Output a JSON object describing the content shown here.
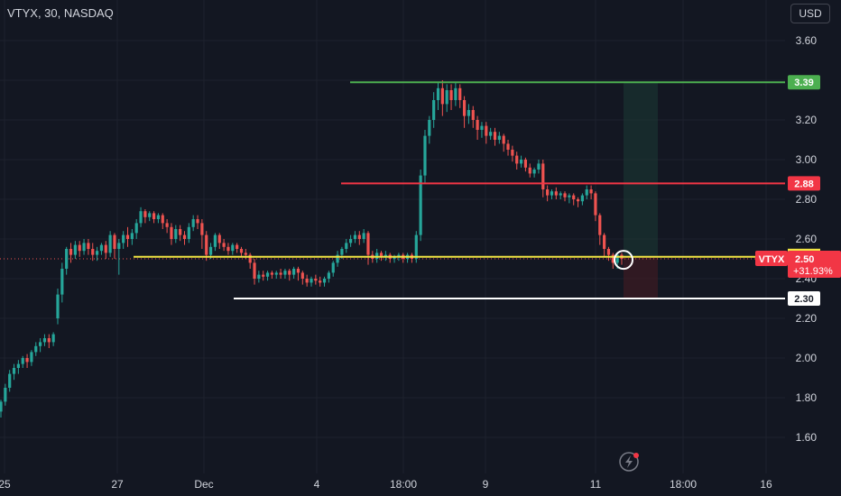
{
  "header": {
    "title": "VTYX, 30, NASDAQ",
    "currency_button": "USD",
    "symbol_tag": "VTYX"
  },
  "colors": {
    "background": "#131722",
    "up": "#26a69a",
    "down": "#ef5350",
    "green_line": "#4caf50",
    "red_line": "#f23645",
    "yellow_line": "#f0e442",
    "white_line": "#ffffff"
  },
  "icons": {
    "flash": "flash-icon"
  },
  "chart_data": {
    "type": "candlestick",
    "title": "VTYX, 30, NASDAQ",
    "currency": "USD",
    "y_ticks": [
      "3.60",
      "3.40",
      "3.20",
      "3.00",
      "2.80",
      "2.60",
      "2.40",
      "2.20",
      "2.00",
      "1.80",
      "1.60"
    ],
    "x_ticks": [
      "25",
      "27",
      "Dec",
      "4",
      "18:00",
      "9",
      "11",
      "18:00",
      "16"
    ],
    "ylim": [
      1.5,
      3.72
    ],
    "horizontal_lines": [
      {
        "label": "3.39",
        "value": 3.39,
        "color": "#4caf50"
      },
      {
        "label": "2.88",
        "value": 2.88,
        "color": "#f23645"
      },
      {
        "label": "2.30",
        "value": 2.3,
        "color": "#ffffff"
      },
      {
        "label": "",
        "value": 2.51,
        "color": "#f0e442"
      }
    ],
    "last_price": {
      "value": "2.50",
      "change": "+31.93%"
    },
    "position": {
      "entry": 2.51,
      "target": 3.39,
      "stop": 2.3
    },
    "candles": [
      [
        1.73,
        1.78,
        1.72,
        1.79,
        1.7
      ],
      [
        1.78,
        1.85,
        1.77,
        1.87,
        1.76
      ],
      [
        1.85,
        1.92,
        1.84,
        1.94,
        1.83
      ],
      [
        1.92,
        1.95,
        1.9,
        1.97,
        1.89
      ],
      [
        1.95,
        1.97,
        1.93,
        1.99,
        1.92
      ],
      [
        1.97,
        2.0,
        1.96,
        2.01,
        1.95
      ],
      [
        2.0,
        1.98,
        1.96,
        2.02,
        1.95
      ],
      [
        1.98,
        2.03,
        1.97,
        2.04,
        1.96
      ],
      [
        2.03,
        2.06,
        2.02,
        2.08,
        2.01
      ],
      [
        2.06,
        2.08,
        2.04,
        2.1,
        2.03
      ],
      [
        2.08,
        2.1,
        2.07,
        2.12,
        2.06
      ],
      [
        2.1,
        2.08,
        2.06,
        2.12,
        2.05
      ],
      [
        2.08,
        2.12,
        2.07,
        2.13,
        2.06
      ],
      [
        2.2,
        2.32,
        2.18,
        2.35,
        2.17
      ],
      [
        2.32,
        2.45,
        2.3,
        2.48,
        2.28
      ],
      [
        2.45,
        2.55,
        2.44,
        2.56,
        2.42
      ],
      [
        2.55,
        2.52,
        2.5,
        2.58,
        2.48
      ],
      [
        2.52,
        2.57,
        2.51,
        2.59,
        2.5
      ],
      [
        2.57,
        2.54,
        2.52,
        2.59,
        2.51
      ],
      [
        2.54,
        2.58,
        2.53,
        2.6,
        2.52
      ],
      [
        2.58,
        2.55,
        2.53,
        2.6,
        2.52
      ],
      [
        2.55,
        2.52,
        2.5,
        2.58,
        2.49
      ],
      [
        2.52,
        2.54,
        2.5,
        2.56,
        2.49
      ],
      [
        2.54,
        2.57,
        2.53,
        2.58,
        2.52
      ],
      [
        2.57,
        2.53,
        2.51,
        2.59,
        2.5
      ],
      [
        2.53,
        2.62,
        2.52,
        2.64,
        2.51
      ],
      [
        2.62,
        2.55,
        2.52,
        2.63,
        2.5
      ],
      [
        2.55,
        2.58,
        2.43,
        2.6,
        2.42
      ],
      [
        2.58,
        2.62,
        2.56,
        2.64,
        2.55
      ],
      [
        2.62,
        2.6,
        2.57,
        2.66,
        2.56
      ],
      [
        2.6,
        2.63,
        2.58,
        2.65,
        2.57
      ],
      [
        2.63,
        2.68,
        2.62,
        2.7,
        2.6
      ],
      [
        2.68,
        2.74,
        2.67,
        2.76,
        2.66
      ],
      [
        2.74,
        2.71,
        2.69,
        2.75,
        2.68
      ],
      [
        2.71,
        2.73,
        2.7,
        2.74,
        2.69
      ],
      [
        2.73,
        2.7,
        2.69,
        2.74,
        2.68
      ],
      [
        2.7,
        2.72,
        2.69,
        2.73,
        2.68
      ],
      [
        2.72,
        2.68,
        2.66,
        2.73,
        2.65
      ],
      [
        2.68,
        2.66,
        2.64,
        2.7,
        2.63
      ],
      [
        2.66,
        2.6,
        2.58,
        2.68,
        2.57
      ],
      [
        2.6,
        2.65,
        2.59,
        2.67,
        2.58
      ],
      [
        2.65,
        2.62,
        2.6,
        2.67,
        2.59
      ],
      [
        2.62,
        2.6,
        2.58,
        2.64,
        2.57
      ],
      [
        2.6,
        2.66,
        2.59,
        2.68,
        2.58
      ],
      [
        2.66,
        2.7,
        2.65,
        2.72,
        2.64
      ],
      [
        2.7,
        2.68,
        2.66,
        2.72,
        2.65
      ],
      [
        2.68,
        2.62,
        2.56,
        2.7,
        2.55
      ],
      [
        2.62,
        2.52,
        2.5,
        2.64,
        2.49
      ],
      [
        2.52,
        2.56,
        2.51,
        2.58,
        2.5
      ],
      [
        2.56,
        2.62,
        2.55,
        2.63,
        2.54
      ],
      [
        2.62,
        2.58,
        2.56,
        2.63,
        2.55
      ],
      [
        2.58,
        2.56,
        2.55,
        2.6,
        2.54
      ],
      [
        2.56,
        2.54,
        2.53,
        2.58,
        2.52
      ],
      [
        2.54,
        2.57,
        2.53,
        2.58,
        2.52
      ],
      [
        2.57,
        2.55,
        2.54,
        2.58,
        2.53
      ],
      [
        2.55,
        2.53,
        2.52,
        2.56,
        2.51
      ],
      [
        2.53,
        2.52,
        2.51,
        2.55,
        2.5
      ],
      [
        2.52,
        2.48,
        2.46,
        2.53,
        2.45
      ],
      [
        2.48,
        2.4,
        2.38,
        2.5,
        2.37
      ],
      [
        2.4,
        2.42,
        2.39,
        2.44,
        2.38
      ],
      [
        2.42,
        2.41,
        2.4,
        2.44,
        2.39
      ],
      [
        2.41,
        2.43,
        2.4,
        2.44,
        2.39
      ],
      [
        2.43,
        2.42,
        2.41,
        2.44,
        2.4
      ],
      [
        2.42,
        2.43,
        2.41,
        2.44,
        2.4
      ],
      [
        2.43,
        2.42,
        2.41,
        2.45,
        2.4
      ],
      [
        2.42,
        2.44,
        2.41,
        2.45,
        2.4
      ],
      [
        2.44,
        2.42,
        2.4,
        2.45,
        2.39
      ],
      [
        2.42,
        2.45,
        2.41,
        2.46,
        2.4
      ],
      [
        2.45,
        2.43,
        2.4,
        2.46,
        2.39
      ],
      [
        2.43,
        2.4,
        2.38,
        2.44,
        2.37
      ],
      [
        2.4,
        2.38,
        2.37,
        2.42,
        2.36
      ],
      [
        2.38,
        2.4,
        2.37,
        2.41,
        2.36
      ],
      [
        2.4,
        2.39,
        2.38,
        2.42,
        2.37
      ],
      [
        2.39,
        2.38,
        2.37,
        2.41,
        2.36
      ],
      [
        2.38,
        2.4,
        2.37,
        2.41,
        2.36
      ],
      [
        2.4,
        2.43,
        2.39,
        2.44,
        2.38
      ],
      [
        2.43,
        2.48,
        2.42,
        2.49,
        2.41
      ],
      [
        2.48,
        2.52,
        2.47,
        2.54,
        2.46
      ],
      [
        2.52,
        2.55,
        2.51,
        2.56,
        2.5
      ],
      [
        2.55,
        2.58,
        2.54,
        2.6,
        2.53
      ],
      [
        2.58,
        2.6,
        2.57,
        2.62,
        2.56
      ],
      [
        2.6,
        2.62,
        2.59,
        2.64,
        2.58
      ],
      [
        2.62,
        2.6,
        2.58,
        2.64,
        2.57
      ],
      [
        2.6,
        2.63,
        2.59,
        2.65,
        2.58
      ],
      [
        2.63,
        2.52,
        2.48,
        2.64,
        2.47
      ],
      [
        2.52,
        2.5,
        2.49,
        2.54,
        2.48
      ],
      [
        2.5,
        2.53,
        2.49,
        2.55,
        2.48
      ],
      [
        2.53,
        2.51,
        2.5,
        2.54,
        2.49
      ],
      [
        2.51,
        2.52,
        2.5,
        2.54,
        2.49
      ],
      [
        2.52,
        2.5,
        2.49,
        2.53,
        2.48
      ],
      [
        2.5,
        2.51,
        2.49,
        2.52,
        2.48
      ],
      [
        2.51,
        2.52,
        2.5,
        2.53,
        2.49
      ],
      [
        2.52,
        2.5,
        2.49,
        2.53,
        2.48
      ],
      [
        2.5,
        2.52,
        2.49,
        2.53,
        2.48
      ],
      [
        2.52,
        2.5,
        2.49,
        2.53,
        2.48
      ],
      [
        2.5,
        2.62,
        2.49,
        2.64,
        2.48
      ],
      [
        2.62,
        2.92,
        2.6,
        2.95,
        2.59
      ],
      [
        2.92,
        3.12,
        2.9,
        3.15,
        2.88
      ],
      [
        3.12,
        3.2,
        3.1,
        3.22,
        3.08
      ],
      [
        3.2,
        3.3,
        3.18,
        3.34,
        3.16
      ],
      [
        3.3,
        3.36,
        3.28,
        3.39,
        3.25
      ],
      [
        3.36,
        3.28,
        3.25,
        3.4,
        3.22
      ],
      [
        3.28,
        3.35,
        3.27,
        3.38,
        3.24
      ],
      [
        3.35,
        3.3,
        3.27,
        3.38,
        3.25
      ],
      [
        3.3,
        3.36,
        3.29,
        3.39,
        3.27
      ],
      [
        3.36,
        3.3,
        3.28,
        3.38,
        3.26
      ],
      [
        3.3,
        3.22,
        3.18,
        3.32,
        3.16
      ],
      [
        3.22,
        3.25,
        3.2,
        3.28,
        3.18
      ],
      [
        3.25,
        3.2,
        3.18,
        3.27,
        3.16
      ],
      [
        3.2,
        3.15,
        3.12,
        3.22,
        3.1
      ],
      [
        3.15,
        3.17,
        3.13,
        3.19,
        3.11
      ],
      [
        3.17,
        3.12,
        3.1,
        3.19,
        3.08
      ],
      [
        3.12,
        3.14,
        3.11,
        3.16,
        3.1
      ],
      [
        3.14,
        3.1,
        3.08,
        3.16,
        3.07
      ],
      [
        3.1,
        3.12,
        3.09,
        3.14,
        3.08
      ],
      [
        3.12,
        3.08,
        3.05,
        3.13,
        3.04
      ],
      [
        3.08,
        3.05,
        3.03,
        3.1,
        3.02
      ],
      [
        3.05,
        3.02,
        3.0,
        3.07,
        2.99
      ],
      [
        3.02,
        2.98,
        2.96,
        3.04,
        2.95
      ],
      [
        2.98,
        3.0,
        2.97,
        3.02,
        2.96
      ],
      [
        3.0,
        2.96,
        2.95,
        3.01,
        2.94
      ],
      [
        2.96,
        2.93,
        2.92,
        2.98,
        2.91
      ],
      [
        2.93,
        2.95,
        2.92,
        2.96,
        2.91
      ],
      [
        2.95,
        2.98,
        2.94,
        3.0,
        2.93
      ],
      [
        2.98,
        2.85,
        2.82,
        3.0,
        2.81
      ],
      [
        2.85,
        2.82,
        2.8,
        2.87,
        2.79
      ],
      [
        2.82,
        2.84,
        2.81,
        2.85,
        2.8
      ],
      [
        2.84,
        2.82,
        2.81,
        2.86,
        2.8
      ],
      [
        2.82,
        2.83,
        2.81,
        2.84,
        2.8
      ],
      [
        2.83,
        2.81,
        2.8,
        2.84,
        2.79
      ],
      [
        2.81,
        2.82,
        2.79,
        2.83,
        2.78
      ],
      [
        2.82,
        2.8,
        2.78,
        2.83,
        2.77
      ],
      [
        2.8,
        2.79,
        2.77,
        2.81,
        2.76
      ],
      [
        2.79,
        2.82,
        2.78,
        2.83,
        2.77
      ],
      [
        2.82,
        2.85,
        2.81,
        2.87,
        2.8
      ],
      [
        2.85,
        2.83,
        2.81,
        2.87,
        2.8
      ],
      [
        2.83,
        2.72,
        2.7,
        2.84,
        2.69
      ],
      [
        2.72,
        2.62,
        2.58,
        2.73,
        2.57
      ],
      [
        2.62,
        2.55,
        2.52,
        2.63,
        2.51
      ],
      [
        2.55,
        2.52,
        2.5,
        2.56,
        2.49
      ],
      [
        2.52,
        2.48,
        2.46,
        2.53,
        2.45
      ],
      [
        2.48,
        2.52,
        2.47,
        2.53,
        2.45
      ],
      [
        2.52,
        2.5,
        2.48,
        2.53,
        2.47
      ]
    ]
  }
}
